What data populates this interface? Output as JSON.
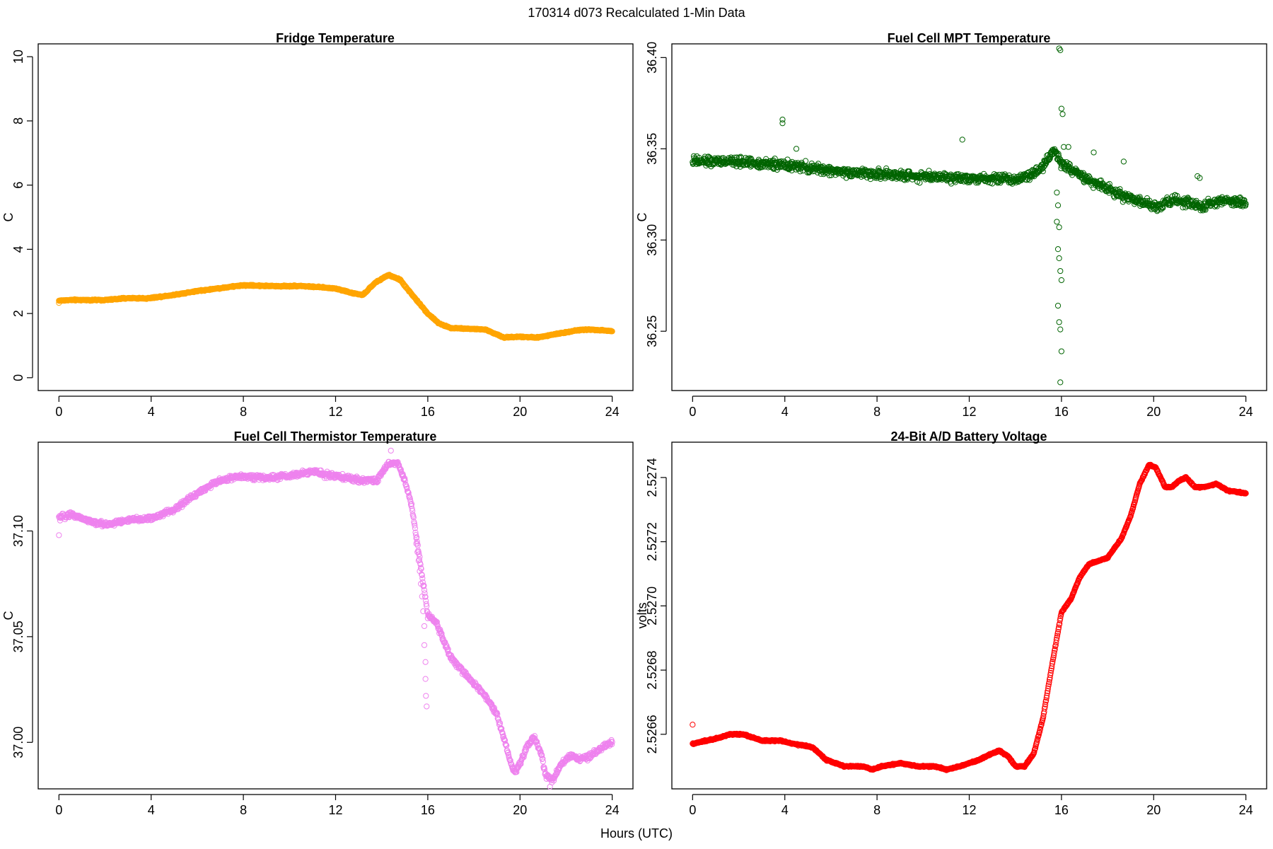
{
  "figure": {
    "suptitle": "170314   d073   Recalculated 1-Min Data",
    "xlabel": "Hours (UTC)"
  },
  "chart_data": [
    {
      "type": "scatter",
      "title": "Fridge Temperature",
      "ylabel": "C",
      "xlabel": "Hours (UTC)",
      "color": "#FFA500",
      "xlim": [
        -0.9,
        24.9
      ],
      "ylim": [
        -0.4,
        10.4
      ],
      "xticks": [
        0,
        4,
        8,
        12,
        16,
        20,
        24
      ],
      "xtick_labels": [
        "0",
        "4",
        "8",
        "12",
        "16",
        "20",
        "24"
      ],
      "yticks": [
        0,
        2,
        4,
        6,
        8,
        10
      ],
      "ytick_labels": [
        "0",
        "2",
        "4",
        "6",
        "8",
        "10"
      ],
      "anchors": {
        "x": [
          0,
          0.5,
          2,
          3,
          3.8,
          5,
          6,
          8,
          9.5,
          10.5,
          12,
          12.8,
          13.2,
          13.7,
          14.3,
          14.8,
          15.3,
          16,
          16.5,
          17,
          18.5,
          19.3,
          20,
          20.7,
          21.5,
          22.5,
          23,
          24
        ],
        "y": [
          2.4,
          2.42,
          2.42,
          2.48,
          2.47,
          2.58,
          2.7,
          2.88,
          2.85,
          2.86,
          2.78,
          2.62,
          2.58,
          2.95,
          3.2,
          3.05,
          2.6,
          2.0,
          1.68,
          1.55,
          1.5,
          1.25,
          1.28,
          1.25,
          1.35,
          1.48,
          1.5,
          1.45
        ]
      },
      "noise": 0.02,
      "extra_points": [
        {
          "x": 0,
          "y": 2.33
        }
      ]
    },
    {
      "type": "scatter",
      "title": "Fuel Cell MPT Temperature",
      "ylabel": "C",
      "xlabel": "Hours (UTC)",
      "color": "#006400",
      "xlim": [
        -0.9,
        24.9
      ],
      "ylim": [
        36.2175,
        36.4075
      ],
      "xticks": [
        0,
        4,
        8,
        12,
        16,
        20,
        24
      ],
      "xtick_labels": [
        "0",
        "4",
        "8",
        "12",
        "16",
        "20",
        "24"
      ],
      "yticks": [
        36.25,
        36.3,
        36.35,
        36.4
      ],
      "ytick_labels": [
        "36.25",
        "36.30",
        "36.35",
        "36.40"
      ],
      "anchors": {
        "x": [
          0,
          2,
          4,
          6,
          8,
          10,
          12,
          13,
          14,
          15,
          15.7,
          16,
          17,
          18,
          19,
          20,
          21,
          22,
          23,
          24
        ],
        "y": [
          36.343,
          36.343,
          36.341,
          36.338,
          36.336,
          36.335,
          36.334,
          36.334,
          36.333,
          36.338,
          36.349,
          36.342,
          36.334,
          36.328,
          36.323,
          36.318,
          36.322,
          36.318,
          36.322,
          36.32
        ]
      },
      "noise": 0.0025,
      "extra_points": [
        {
          "x": 3.9,
          "y": 36.366
        },
        {
          "x": 3.9,
          "y": 36.364
        },
        {
          "x": 4.5,
          "y": 36.35
        },
        {
          "x": 11.7,
          "y": 36.355
        },
        {
          "x": 15.9,
          "y": 36.405
        },
        {
          "x": 15.95,
          "y": 36.404
        },
        {
          "x": 16.0,
          "y": 36.372
        },
        {
          "x": 16.05,
          "y": 36.369
        },
        {
          "x": 15.8,
          "y": 36.326
        },
        {
          "x": 15.85,
          "y": 36.319
        },
        {
          "x": 15.8,
          "y": 36.31
        },
        {
          "x": 15.9,
          "y": 36.307
        },
        {
          "x": 15.85,
          "y": 36.295
        },
        {
          "x": 15.9,
          "y": 36.29
        },
        {
          "x": 15.95,
          "y": 36.283
        },
        {
          "x": 16.0,
          "y": 36.278
        },
        {
          "x": 15.85,
          "y": 36.264
        },
        {
          "x": 15.9,
          "y": 36.255
        },
        {
          "x": 15.95,
          "y": 36.251
        },
        {
          "x": 16.0,
          "y": 36.239
        },
        {
          "x": 15.95,
          "y": 36.222
        },
        {
          "x": 16.1,
          "y": 36.351
        },
        {
          "x": 16.3,
          "y": 36.351
        },
        {
          "x": 17.4,
          "y": 36.348
        },
        {
          "x": 18.7,
          "y": 36.343
        },
        {
          "x": 21.9,
          "y": 36.335
        },
        {
          "x": 22.0,
          "y": 36.334
        }
      ]
    },
    {
      "type": "scatter",
      "title": "Fuel Cell Thermistor Temperature",
      "ylabel": "C",
      "xlabel": "Hours (UTC)",
      "color": "#EE82EE",
      "xlim": [
        -0.9,
        24.9
      ],
      "ylim": [
        36.978,
        37.142
      ],
      "xticks": [
        0,
        4,
        8,
        12,
        16,
        20,
        24
      ],
      "xtick_labels": [
        "0",
        "4",
        "8",
        "12",
        "16",
        "20",
        "24"
      ],
      "yticks": [
        37.0,
        37.05,
        37.1
      ],
      "ytick_labels": [
        "37.00",
        "37.05",
        "37.10"
      ],
      "anchors": {
        "x": [
          0,
          0.5,
          1,
          1.5,
          2,
          3,
          4,
          5,
          6,
          7,
          8,
          9,
          10,
          11,
          12,
          13,
          13.8,
          14.3,
          14.7,
          15,
          15.3,
          15.6,
          15.9,
          16,
          16.3,
          16.7,
          17,
          17.5,
          18,
          18.5,
          19,
          19.3,
          19.6,
          19.8,
          20,
          20.3,
          20.6,
          20.9,
          21.1,
          21.4,
          21.8,
          22.2,
          22.5,
          23,
          23.5,
          24
        ],
        "y": [
          37.106,
          37.108,
          37.106,
          37.104,
          37.103,
          37.105,
          37.106,
          37.11,
          37.118,
          37.124,
          37.126,
          37.125,
          37.126,
          37.128,
          37.126,
          37.124,
          37.124,
          37.132,
          37.132,
          37.124,
          37.112,
          37.09,
          37.068,
          37.06,
          37.058,
          37.048,
          37.04,
          37.034,
          37.028,
          37.022,
          37.013,
          37.002,
          36.99,
          36.986,
          36.99,
          36.998,
          37.002,
          36.996,
          36.985,
          36.982,
          36.99,
          36.994,
          36.992,
          36.993,
          36.997,
          37.0
        ]
      },
      "noise": 0.0012,
      "extra_points": [
        {
          "x": 0,
          "y": 37.098
        },
        {
          "x": 15.5,
          "y": 37.094
        },
        {
          "x": 15.55,
          "y": 37.09
        },
        {
          "x": 15.6,
          "y": 37.086
        },
        {
          "x": 15.65,
          "y": 37.081
        },
        {
          "x": 15.7,
          "y": 37.075
        },
        {
          "x": 15.75,
          "y": 37.069
        },
        {
          "x": 15.8,
          "y": 37.062
        },
        {
          "x": 15.85,
          "y": 37.055
        },
        {
          "x": 15.85,
          "y": 37.046
        },
        {
          "x": 15.9,
          "y": 37.038
        },
        {
          "x": 15.9,
          "y": 37.03
        },
        {
          "x": 15.92,
          "y": 37.022
        },
        {
          "x": 15.95,
          "y": 37.017
        },
        {
          "x": 14.4,
          "y": 37.138
        },
        {
          "x": 21.3,
          "y": 36.979
        }
      ]
    },
    {
      "type": "scatter",
      "title": "24-Bit A/D Battery Voltage",
      "ylabel": "volts",
      "xlabel": "Hours (UTC)",
      "color": "#FF0000",
      "xlim": [
        -0.9,
        24.9
      ],
      "ylim": [
        2.52643,
        2.52751
      ],
      "xticks": [
        0,
        4,
        8,
        12,
        16,
        20,
        24
      ],
      "xtick_labels": [
        "0",
        "4",
        "8",
        "12",
        "16",
        "20",
        "24"
      ],
      "yticks": [
        2.5266,
        2.5268,
        2.527,
        2.5272,
        2.5274
      ],
      "ytick_labels": [
        "2.5266",
        "2.5268",
        "2.5270",
        "2.5272",
        "2.5274"
      ],
      "anchors": {
        "x": [
          0,
          0.6,
          1.2,
          1.6,
          2.2,
          3,
          3.8,
          4.4,
          5.2,
          5.8,
          6.6,
          7.4,
          7.8,
          8.2,
          9,
          9.8,
          10.5,
          11,
          11.6,
          12.4,
          13,
          13.3,
          13.7,
          14,
          14.4,
          14.8,
          15.2,
          15.6,
          16,
          16.4,
          16.8,
          17.2,
          17.6,
          18,
          18.6,
          19,
          19.4,
          19.8,
          20.1,
          20.5,
          20.8,
          21.1,
          21.4,
          21.8,
          22.2,
          22.7,
          23.2,
          24
        ],
        "y": [
          2.52657,
          2.52658,
          2.52659,
          2.5266,
          2.5266,
          2.52658,
          2.52658,
          2.52657,
          2.52656,
          2.52652,
          2.5265,
          2.5265,
          2.52649,
          2.5265,
          2.52651,
          2.5265,
          2.5265,
          2.52649,
          2.5265,
          2.52652,
          2.52654,
          2.52655,
          2.52653,
          2.5265,
          2.5265,
          2.52654,
          2.52665,
          2.52682,
          2.52698,
          2.52702,
          2.52709,
          2.52713,
          2.52714,
          2.52715,
          2.52721,
          2.52728,
          2.52738,
          2.52744,
          2.52743,
          2.52737,
          2.52737,
          2.52739,
          2.5274,
          2.52737,
          2.52737,
          2.52738,
          2.52736,
          2.52735
        ]
      },
      "noise": 2e-06,
      "extra_points": [
        {
          "x": 0,
          "y": 2.52663
        }
      ]
    }
  ]
}
